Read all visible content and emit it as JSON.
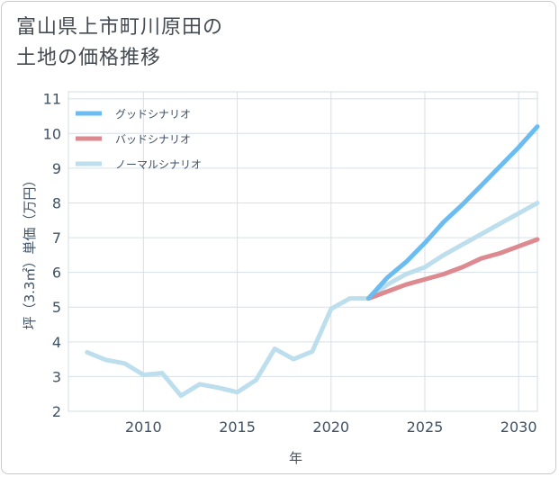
{
  "title": {
    "line1": "富山県上市町川原田の",
    "line2": "土地の価格推移"
  },
  "chart_data": {
    "type": "line",
    "xlabel": "年",
    "ylabel": "坪（3.3㎡）単価（万円）",
    "xlim": [
      2006,
      2031
    ],
    "ylim": [
      2,
      11.2
    ],
    "xticks": [
      2010,
      2015,
      2020,
      2025,
      2030
    ],
    "yticks": [
      2,
      3,
      4,
      5,
      6,
      7,
      8,
      9,
      10,
      11
    ],
    "grid": true,
    "legend_position": "top-left",
    "series": [
      {
        "name": "グッドシナリオ",
        "color": "#6bbcf0",
        "x": [
          2022,
          2023,
          2024,
          2025,
          2026,
          2027,
          2028,
          2029,
          2030,
          2031
        ],
        "y": [
          5.25,
          5.85,
          6.3,
          6.85,
          7.45,
          7.95,
          8.5,
          9.05,
          9.6,
          10.2
        ]
      },
      {
        "name": "バッドシナリオ",
        "color": "#dc8a8f",
        "x": [
          2022,
          2023,
          2024,
          2025,
          2026,
          2027,
          2028,
          2029,
          2030,
          2031
        ],
        "y": [
          5.25,
          5.45,
          5.65,
          5.8,
          5.95,
          6.15,
          6.4,
          6.55,
          6.75,
          6.95
        ]
      },
      {
        "name": "ノーマルシナリオ",
        "color": "#bcdeed",
        "x": [
          2007,
          2008,
          2009,
          2010,
          2011,
          2012,
          2013,
          2014,
          2015,
          2016,
          2017,
          2018,
          2019,
          2020,
          2021,
          2022,
          2023,
          2024,
          2025,
          2026,
          2027,
          2028,
          2029,
          2030,
          2031
        ],
        "y": [
          3.7,
          3.48,
          3.38,
          3.05,
          3.1,
          2.45,
          2.78,
          2.68,
          2.55,
          2.9,
          3.8,
          3.5,
          3.72,
          4.95,
          5.25,
          5.25,
          5.65,
          5.95,
          6.15,
          6.5,
          6.8,
          7.1,
          7.4,
          7.7,
          8.0
        ]
      }
    ]
  }
}
